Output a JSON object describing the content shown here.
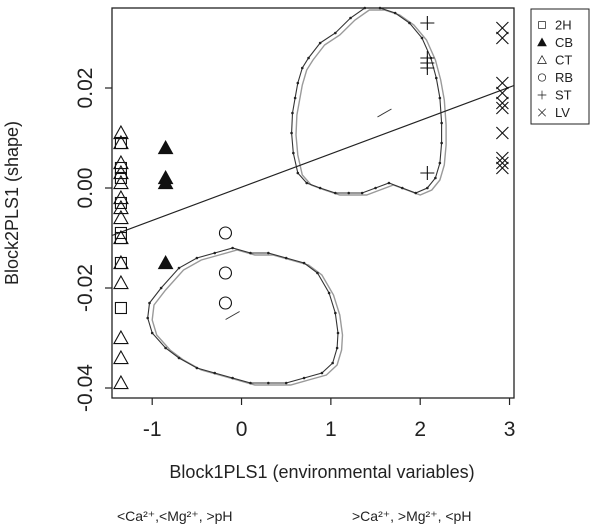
{
  "chart_data": {
    "type": "scatter",
    "xlabel": "Block1PLS1 (environmental variables)",
    "ylabel": "Block2PLS1 (shape)",
    "xlim": [
      -1.45,
      3.05
    ],
    "ylim": [
      -0.042,
      0.036
    ],
    "x_ticks": [
      "-1",
      "0",
      "1",
      "2",
      "3"
    ],
    "y_ticks": [
      "-0.04",
      "-0.02",
      "0.00",
      "0.02"
    ],
    "x_tick_values": [
      -1,
      0,
      1,
      2,
      3
    ],
    "y_tick_values": [
      -0.04,
      -0.02,
      0.0,
      0.02
    ],
    "grid": false,
    "legend_position": "outside-right",
    "annotation_left": "<Ca²⁺,<Mg²⁺, >pH",
    "annotation_right": ">Ca²⁺, >Mg²⁺, <pH",
    "regression_line": {
      "x": [
        -1.45,
        3.05
      ],
      "y": [
        -0.0095,
        0.0205
      ]
    },
    "series": [
      {
        "name": "2H",
        "marker": "square",
        "x": [
          -1.35,
          -1.35,
          -1.35,
          -1.35,
          -1.35,
          -1.35,
          -1.35,
          -1.35
        ],
        "y": [
          0.009,
          0.004,
          0.002,
          -0.003,
          -0.009,
          -0.01,
          -0.015,
          -0.024
        ]
      },
      {
        "name": "CB",
        "marker": "filled-triangle",
        "x": [
          -0.85,
          -0.85,
          -0.85,
          -0.85
        ],
        "y": [
          0.008,
          0.002,
          0.001,
          -0.015
        ]
      },
      {
        "name": "CT",
        "marker": "triangle",
        "x": [
          -1.35,
          -1.35,
          -1.35,
          -1.35,
          -1.35,
          -1.35,
          -1.35,
          -1.35,
          -1.35,
          -1.35,
          -1.35,
          -1.35,
          -1.35,
          -1.35
        ],
        "y": [
          0.011,
          0.009,
          0.005,
          0.003,
          0.001,
          -0.002,
          -0.004,
          -0.006,
          -0.01,
          -0.015,
          -0.019,
          -0.03,
          -0.034,
          -0.039
        ]
      },
      {
        "name": "RB",
        "marker": "circle",
        "x": [
          -0.18,
          -0.18,
          -0.18
        ],
        "y": [
          -0.009,
          -0.017,
          -0.023
        ]
      },
      {
        "name": "ST",
        "marker": "plus",
        "x": [
          2.08,
          2.08,
          2.08,
          2.08,
          2.08
        ],
        "y": [
          0.033,
          0.026,
          0.025,
          0.024,
          0.003
        ]
      },
      {
        "name": "LV",
        "marker": "cross",
        "x": [
          2.92,
          2.92,
          2.92,
          2.92,
          2.92,
          2.92,
          2.92,
          2.92,
          2.92,
          2.92
        ],
        "y": [
          0.032,
          0.03,
          0.021,
          0.019,
          0.017,
          0.016,
          0.011,
          0.006,
          0.005,
          0.004
        ]
      }
    ],
    "shape_outlines": [
      {
        "name": "high-score-shape",
        "center": [
          1.6,
          0.015
        ],
        "points": [
          [
            0.88,
            0.029
          ],
          [
            1.05,
            0.031
          ],
          [
            1.22,
            0.034
          ],
          [
            1.38,
            0.036
          ],
          [
            1.55,
            0.036
          ],
          [
            1.72,
            0.035
          ],
          [
            1.88,
            0.033
          ],
          [
            2.02,
            0.03
          ],
          [
            2.12,
            0.026
          ],
          [
            2.18,
            0.022
          ],
          [
            2.22,
            0.018
          ],
          [
            2.24,
            0.013
          ],
          [
            2.24,
            0.009
          ],
          [
            2.22,
            0.005
          ],
          [
            2.17,
            0.002
          ],
          [
            2.08,
            0.0
          ],
          [
            1.95,
            -0.001
          ],
          [
            1.8,
            0.0
          ],
          [
            1.65,
            0.001
          ],
          [
            1.5,
            0.0
          ],
          [
            1.35,
            -0.001
          ],
          [
            1.2,
            -0.001
          ],
          [
            1.05,
            -0.001
          ],
          [
            0.88,
            0.0
          ],
          [
            0.73,
            0.001
          ],
          [
            0.63,
            0.003
          ],
          [
            0.58,
            0.007
          ],
          [
            0.56,
            0.011
          ],
          [
            0.57,
            0.015
          ],
          [
            0.6,
            0.018
          ],
          [
            0.63,
            0.021
          ],
          [
            0.68,
            0.024
          ],
          [
            0.75,
            0.026
          ]
        ]
      },
      {
        "name": "low-score-shape",
        "center": [
          -0.1,
          -0.0255
        ],
        "points": [
          [
            -0.9,
            -0.02
          ],
          [
            -0.7,
            -0.016
          ],
          [
            -0.5,
            -0.014
          ],
          [
            -0.3,
            -0.013
          ],
          [
            -0.1,
            -0.012
          ],
          [
            0.1,
            -0.013
          ],
          [
            0.3,
            -0.013
          ],
          [
            0.5,
            -0.014
          ],
          [
            0.7,
            -0.015
          ],
          [
            0.85,
            -0.017
          ],
          [
            0.98,
            -0.021
          ],
          [
            1.05,
            -0.025
          ],
          [
            1.08,
            -0.029
          ],
          [
            1.07,
            -0.032
          ],
          [
            1.02,
            -0.035
          ],
          [
            0.9,
            -0.037
          ],
          [
            0.7,
            -0.038
          ],
          [
            0.5,
            -0.039
          ],
          [
            0.3,
            -0.039
          ],
          [
            0.1,
            -0.039
          ],
          [
            -0.1,
            -0.038
          ],
          [
            -0.3,
            -0.037
          ],
          [
            -0.5,
            -0.036
          ],
          [
            -0.7,
            -0.034
          ],
          [
            -0.85,
            -0.032
          ],
          [
            -1.0,
            -0.029
          ],
          [
            -1.05,
            -0.026
          ],
          [
            -1.03,
            -0.023
          ]
        ]
      }
    ]
  }
}
